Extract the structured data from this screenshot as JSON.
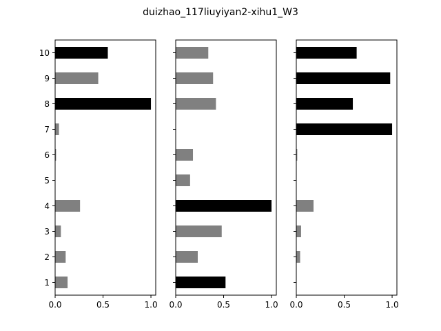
{
  "title": "duizhao_117liuyiyan2-xihu1_W3",
  "chart_data": {
    "type": "bar",
    "orientation": "horizontal",
    "title": "duizhao_117liuyiyan2-xihu1_W3",
    "categories": [
      "1",
      "2",
      "3",
      "4",
      "5",
      "6",
      "7",
      "8",
      "9",
      "10"
    ],
    "xlim": [
      0,
      1.05
    ],
    "xticks": [
      "0.0",
      "0.5",
      "1.0"
    ],
    "shared_y_tick_labels_on": "left panel",
    "grid": false,
    "colors": {
      "gray": "#808080",
      "black": "#000000"
    },
    "panels": [
      {
        "values": [
          0.13,
          0.11,
          0.06,
          0.26,
          0.0,
          0.01,
          0.04,
          1.0,
          0.45,
          0.55
        ],
        "colors": [
          "gray",
          "gray",
          "gray",
          "gray",
          "gray",
          "gray",
          "gray",
          "black",
          "gray",
          "black"
        ]
      },
      {
        "values": [
          0.52,
          0.23,
          0.48,
          1.0,
          0.15,
          0.18,
          0.0,
          0.42,
          0.39,
          0.34
        ],
        "colors": [
          "black",
          "gray",
          "gray",
          "black",
          "gray",
          "gray",
          "gray",
          "gray",
          "gray",
          "gray"
        ]
      },
      {
        "values": [
          0.0,
          0.04,
          0.05,
          0.18,
          0.0,
          0.01,
          1.0,
          0.59,
          0.98,
          0.63
        ],
        "colors": [
          "gray",
          "gray",
          "gray",
          "gray",
          "gray",
          "gray",
          "black",
          "black",
          "black",
          "black"
        ]
      }
    ]
  }
}
